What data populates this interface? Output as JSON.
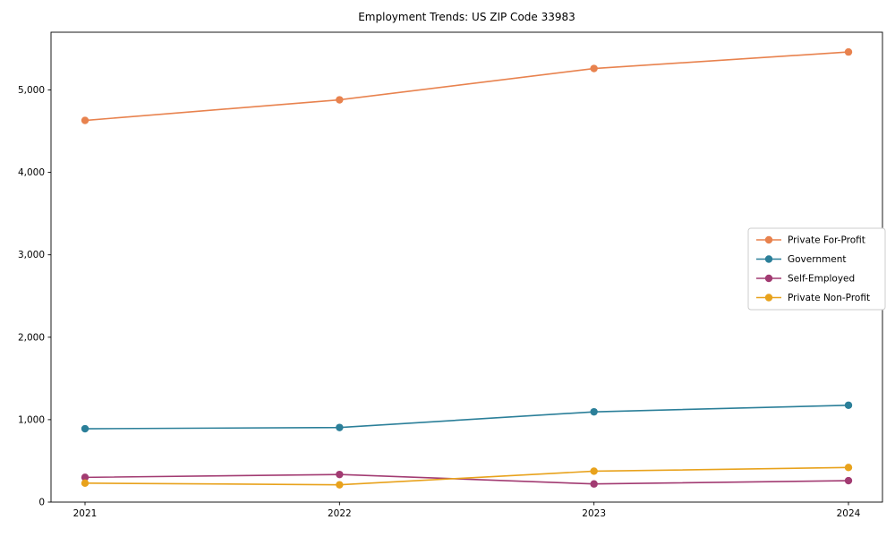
{
  "title": "Employment Trends: US ZIP Code 33983",
  "chart_data": {
    "type": "line",
    "title": "Employment Trends: US ZIP Code 33983",
    "x": [
      2021,
      2022,
      2023,
      2024
    ],
    "series": [
      {
        "name": "Private For-Profit",
        "color": "#e8824e",
        "values": [
          4630,
          4880,
          5260,
          5460
        ]
      },
      {
        "name": "Government",
        "color": "#2b7f99",
        "values": [
          890,
          905,
          1095,
          1175
        ]
      },
      {
        "name": "Self-Employed",
        "color": "#a23b72",
        "values": [
          300,
          335,
          220,
          260
        ]
      },
      {
        "name": "Private Non-Profit",
        "color": "#e8a21c",
        "values": [
          230,
          210,
          375,
          420
        ]
      }
    ],
    "xlabel": "",
    "ylabel": "",
    "yticks": [
      0,
      1000,
      2000,
      3000,
      4000,
      5000
    ],
    "ytick_labels": [
      "0",
      "1,000",
      "2,000",
      "3,000",
      "4,000",
      "5,000"
    ],
    "ylim": [
      0,
      5700
    ],
    "grid": false,
    "legend_position": "right-middle",
    "marker": "circle",
    "axis_color": "#000000"
  }
}
